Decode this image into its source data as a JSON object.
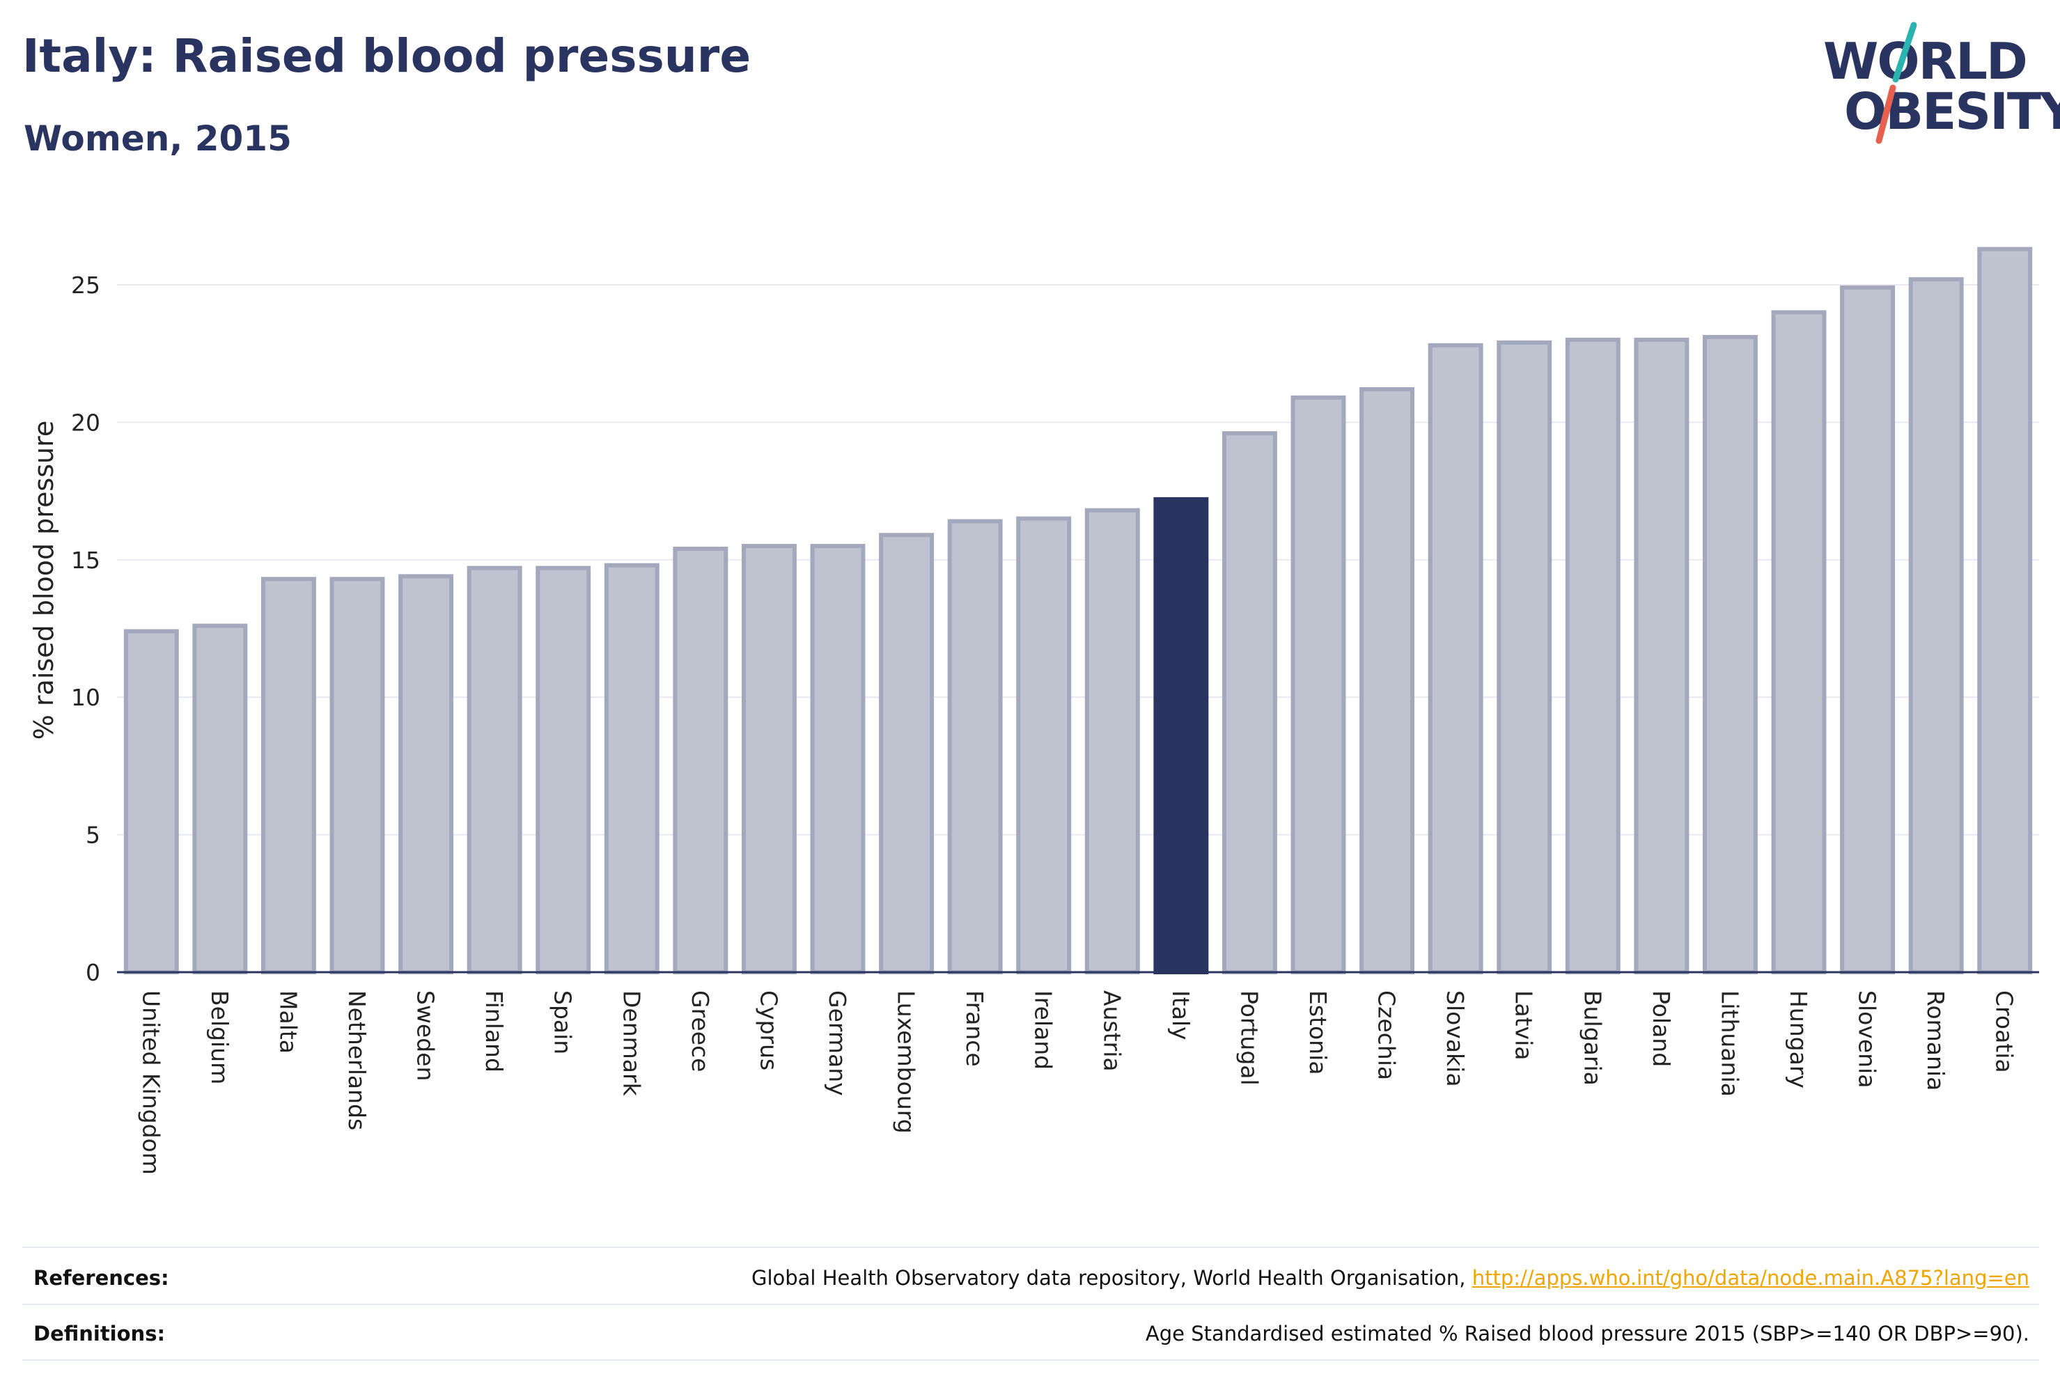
{
  "header": {
    "title": "Italy: Raised blood pressure",
    "subtitle": "Women, 2015"
  },
  "logo": {
    "line1": "WORLD",
    "line2": "OBESITY",
    "slash_colors": [
      "#2ab3b0",
      "#e8604f"
    ]
  },
  "colors": {
    "bar": "#bfc2cf",
    "bar_border": "#a3a8bd",
    "highlight": "#2a3460",
    "title": "#2a3460",
    "link": "#f0a500"
  },
  "chart_data": {
    "type": "bar",
    "ylabel": "% raised blood pressure",
    "xlabel": "",
    "ylim": [
      0,
      27
    ],
    "yticks": [
      0,
      5,
      10,
      15,
      20,
      25
    ],
    "grid": true,
    "highlight_category": "Italy",
    "categories": [
      "United Kingdom",
      "Belgium",
      "Malta",
      "Netherlands",
      "Sweden",
      "Finland",
      "Spain",
      "Denmark",
      "Greece",
      "Cyprus",
      "Germany",
      "Luxembourg",
      "France",
      "Ireland",
      "Austria",
      "Italy",
      "Portugal",
      "Estonia",
      "Czechia",
      "Slovakia",
      "Latvia",
      "Bulgaria",
      "Poland",
      "Lithuania",
      "Hungary",
      "Slovenia",
      "Romania",
      "Croatia"
    ],
    "values": [
      12.4,
      12.6,
      14.3,
      14.3,
      14.4,
      14.7,
      14.7,
      14.8,
      15.4,
      15.5,
      15.5,
      15.9,
      16.4,
      16.5,
      16.8,
      17.2,
      19.6,
      20.9,
      21.2,
      22.8,
      22.9,
      23.0,
      23.0,
      23.1,
      24.0,
      24.9,
      25.2,
      26.3
    ]
  },
  "footer": {
    "references_label": "References:",
    "references_text": "Global Health Observatory data repository, World Health Organisation, ",
    "references_link": "http://apps.who.int/gho/data/node.main.A875?lang=en",
    "definitions_label": "Definitions:",
    "definitions_text": "Age Standardised estimated % Raised blood pressure 2015 (SBP>=140 OR DBP>=90)."
  }
}
